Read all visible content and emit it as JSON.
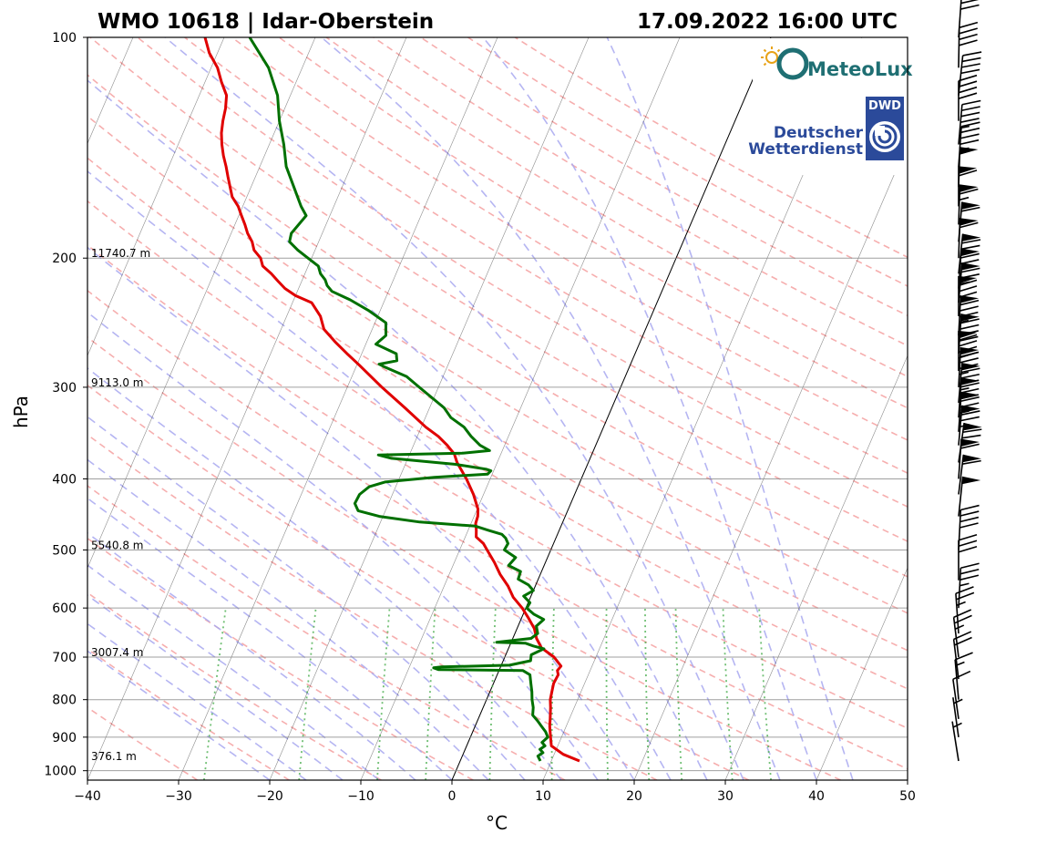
{
  "header": {
    "station": "WMO 10618 | Idar-Oberstein",
    "datetime": "17.09.2022 16:00 UTC"
  },
  "logos": {
    "meteolux": "MeteoLux",
    "dwd_badge": "DWD",
    "dwd_line1": "Deutscher",
    "dwd_line2": "Wetterdienst"
  },
  "chart_data": {
    "type": "line",
    "subtype": "skew-T log-p sounding",
    "title": "WMO 10618 | Idar-Oberstein",
    "subtitle": "17.09.2022 16:00 UTC",
    "xlabel": "°C",
    "ylabel": "hPa",
    "xlim": [
      -40,
      50
    ],
    "ylim": [
      1030,
      100
    ],
    "y_scale": "log",
    "grid": true,
    "x_ticks": [
      "−40",
      "−30",
      "−20",
      "−10",
      "0",
      "10",
      "20",
      "30",
      "40",
      "50"
    ],
    "y_ticks": [
      "100",
      "200",
      "300",
      "400",
      "500",
      "600",
      "700",
      "800",
      "900",
      "1000"
    ],
    "height_labels": [
      {
        "p": 200,
        "label": "11740.7 m"
      },
      {
        "p": 300,
        "label": "9113.0 m"
      },
      {
        "p": 500,
        "label": "5540.8 m"
      },
      {
        "p": 700,
        "label": "3007.4 m"
      },
      {
        "p": 970,
        "label": "376.1 m"
      }
    ],
    "series": [
      {
        "color": "#e00000",
        "points": [
          [
            970,
            13.1
          ],
          [
            950,
            11.0
          ],
          [
            925,
            9.3
          ],
          [
            900,
            8.8
          ],
          [
            870,
            8.2
          ],
          [
            850,
            7.9
          ],
          [
            820,
            7.4
          ],
          [
            800,
            7.0
          ],
          [
            780,
            6.8
          ],
          [
            760,
            6.6
          ],
          [
            740,
            6.7
          ],
          [
            730,
            6.4
          ],
          [
            720,
            6.6
          ],
          [
            700,
            5.4
          ],
          [
            680,
            3.6
          ],
          [
            660,
            2.6
          ],
          [
            640,
            1.9
          ],
          [
            620,
            0.8
          ],
          [
            600,
            -0.4
          ],
          [
            580,
            -1.9
          ],
          [
            560,
            -3.0
          ],
          [
            540,
            -4.4
          ],
          [
            520,
            -5.6
          ],
          [
            500,
            -7.0
          ],
          [
            490,
            -7.7
          ],
          [
            480,
            -8.8
          ],
          [
            470,
            -9.1
          ],
          [
            460,
            -9.5
          ],
          [
            450,
            -9.6
          ],
          [
            440,
            -9.9
          ],
          [
            420,
            -11.1
          ],
          [
            400,
            -12.6
          ],
          [
            380,
            -14.4
          ],
          [
            370,
            -15.1
          ],
          [
            360,
            -16.3
          ],
          [
            350,
            -17.7
          ],
          [
            340,
            -19.5
          ],
          [
            320,
            -22.7
          ],
          [
            300,
            -26.2
          ],
          [
            280,
            -29.7
          ],
          [
            270,
            -31.6
          ],
          [
            260,
            -33.5
          ],
          [
            250,
            -35.3
          ],
          [
            240,
            -36.3
          ],
          [
            230,
            -37.9
          ],
          [
            225,
            -40.0
          ],
          [
            220,
            -41.5
          ],
          [
            215,
            -42.6
          ],
          [
            210,
            -43.7
          ],
          [
            205,
            -45.0
          ],
          [
            200,
            -45.6
          ],
          [
            195,
            -46.7
          ],
          [
            190,
            -47.3
          ],
          [
            185,
            -48.2
          ],
          [
            180,
            -48.9
          ],
          [
            175,
            -49.7
          ],
          [
            170,
            -50.5
          ],
          [
            165,
            -51.6
          ],
          [
            160,
            -52.3
          ],
          [
            155,
            -53.0
          ],
          [
            150,
            -53.7
          ],
          [
            145,
            -54.5
          ],
          [
            140,
            -55.2
          ],
          [
            135,
            -55.8
          ],
          [
            130,
            -56.2
          ],
          [
            125,
            -56.5
          ],
          [
            120,
            -57.0
          ],
          [
            115,
            -58.2
          ],
          [
            110,
            -59.3
          ],
          [
            105,
            -60.9
          ],
          [
            100,
            -62.1
          ]
        ]
      },
      {
        "color": "#007000",
        "points": [
          [
            970,
            8.8
          ],
          [
            955,
            8.3
          ],
          [
            945,
            8.7
          ],
          [
            935,
            8.2
          ],
          [
            925,
            8.6
          ],
          [
            915,
            8.1
          ],
          [
            900,
            8.5
          ],
          [
            885,
            8.0
          ],
          [
            870,
            7.3
          ],
          [
            855,
            6.6
          ],
          [
            840,
            5.8
          ],
          [
            820,
            5.5
          ],
          [
            800,
            5.0
          ],
          [
            780,
            4.6
          ],
          [
            760,
            4.1
          ],
          [
            740,
            3.6
          ],
          [
            730,
            2.6
          ],
          [
            728,
            -6.7
          ],
          [
            724,
            -7.3
          ],
          [
            722,
            -6.5
          ],
          [
            718,
            0.9
          ],
          [
            708,
            3.0
          ],
          [
            695,
            2.8
          ],
          [
            682,
            3.9
          ],
          [
            676,
            2.6
          ],
          [
            670,
            1.6
          ],
          [
            668,
            -1.6
          ],
          [
            664,
            0.2
          ],
          [
            660,
            2.0
          ],
          [
            650,
            2.5
          ],
          [
            635,
            2.0
          ],
          [
            622,
            2.5
          ],
          [
            612,
            1.2
          ],
          [
            600,
            0.1
          ],
          [
            590,
            0.2
          ],
          [
            578,
            -0.8
          ],
          [
            568,
            0.0
          ],
          [
            558,
            -0.8
          ],
          [
            548,
            -2.2
          ],
          [
            535,
            -2.3
          ],
          [
            525,
            -3.9
          ],
          [
            512,
            -3.5
          ],
          [
            500,
            -5.1
          ],
          [
            490,
            -5.0
          ],
          [
            482,
            -5.5
          ],
          [
            476,
            -6.1
          ],
          [
            470,
            -7.8
          ],
          [
            464,
            -9.4
          ],
          [
            458,
            -15.7
          ],
          [
            450,
            -20.4
          ],
          [
            442,
            -23.0
          ],
          [
            432,
            -23.7
          ],
          [
            420,
            -23.6
          ],
          [
            410,
            -22.9
          ],
          [
            404,
            -21.4
          ],
          [
            398,
            -16.2
          ],
          [
            394,
            -10.5
          ],
          [
            390,
            -10.3
          ],
          [
            388,
            -10.9
          ],
          [
            385,
            -12.7
          ],
          [
            382,
            -14.6
          ],
          [
            380,
            -16.7
          ],
          [
            375,
            -21.8
          ],
          [
            371,
            -23.4
          ],
          [
            369,
            -14.3
          ],
          [
            366,
            -11.4
          ],
          [
            360,
            -12.7
          ],
          [
            350,
            -14.1
          ],
          [
            340,
            -15.3
          ],
          [
            330,
            -17.2
          ],
          [
            320,
            -18.4
          ],
          [
            300,
            -22.1
          ],
          [
            290,
            -24.0
          ],
          [
            281,
            -27.0
          ],
          [
            279,
            -27.6
          ],
          [
            276,
            -25.8
          ],
          [
            270,
            -26.2
          ],
          [
            262,
            -28.9
          ],
          [
            255,
            -28.2
          ],
          [
            245,
            -28.8
          ],
          [
            236,
            -31.2
          ],
          [
            228,
            -33.8
          ],
          [
            222,
            -36.2
          ],
          [
            218,
            -37.0
          ],
          [
            214,
            -37.5
          ],
          [
            210,
            -38.3
          ],
          [
            205,
            -38.9
          ],
          [
            200,
            -40.4
          ],
          [
            195,
            -41.9
          ],
          [
            190,
            -43.2
          ],
          [
            185,
            -43.4
          ],
          [
            175,
            -42.6
          ],
          [
            170,
            -43.6
          ],
          [
            160,
            -45.3
          ],
          [
            150,
            -47.1
          ],
          [
            140,
            -48.4
          ],
          [
            130,
            -50.0
          ],
          [
            120,
            -51.4
          ],
          [
            110,
            -53.7
          ],
          [
            100,
            -57.2
          ]
        ]
      }
    ],
    "background_lines": {
      "isotherms": {
        "color": "#000000",
        "step": 10
      },
      "dry_adiabats": {
        "color": "#f4a0a0"
      },
      "moist_adiabats": {
        "color": "#a8a8f0"
      },
      "mixing_ratio": {
        "color": "#4caf50"
      },
      "zero_isotherm": {
        "color": "#000000"
      }
    },
    "wind_barbs": [
      [
        970,
        3,
        1
      ],
      [
        900,
        6,
        2
      ],
      [
        850,
        12,
        2
      ],
      [
        800,
        17,
        5
      ],
      [
        750,
        20,
        3
      ],
      [
        700,
        25,
        3
      ],
      [
        650,
        27,
        6
      ],
      [
        600,
        34,
        13
      ],
      [
        550,
        32,
        10
      ],
      [
        500,
        38,
        13
      ],
      [
        450,
        50,
        16
      ],
      [
        420,
        58,
        17
      ],
      [
        400,
        62,
        14
      ],
      [
        380,
        70,
        18
      ],
      [
        360,
        76,
        15
      ],
      [
        345,
        77,
        14
      ],
      [
        330,
        78,
        14
      ],
      [
        315,
        83,
        15
      ],
      [
        300,
        87,
        13
      ],
      [
        285,
        90,
        10
      ],
      [
        270,
        92,
        14
      ],
      [
        255,
        86,
        13
      ],
      [
        240,
        82,
        10
      ],
      [
        230,
        77,
        15
      ],
      [
        220,
        72,
        14
      ],
      [
        210,
        68,
        16
      ],
      [
        200,
        60,
        12
      ],
      [
        190,
        62,
        15
      ],
      [
        180,
        65,
        12
      ],
      [
        170,
        60,
        10
      ],
      [
        160,
        48,
        12
      ],
      [
        150,
        46,
        14
      ],
      [
        140,
        44,
        15
      ],
      [
        130,
        42,
        10
      ],
      [
        120,
        40,
        16
      ],
      [
        110,
        38,
        11
      ],
      [
        100,
        32,
        14
      ]
    ]
  }
}
